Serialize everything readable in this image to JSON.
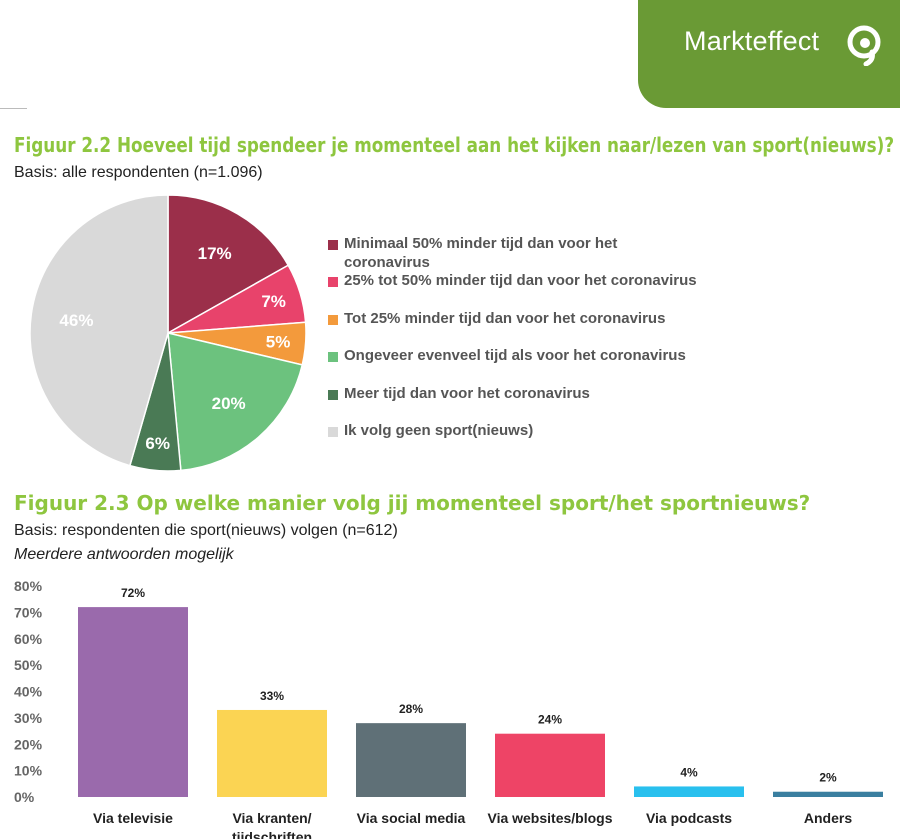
{
  "brand": {
    "name": "Markteffect",
    "color": "#6a9a35"
  },
  "figure1": {
    "title": "Figuur 2.2 Hoeveel tijd spendeer je momenteel aan het kijken naar/lezen van sport(nieuws)?",
    "basis": "Basis: alle respondenten (n=1.096)"
  },
  "figure2": {
    "title": "Figuur 2.3 Op welke manier volg jij momenteel sport/het sportnieuws?",
    "basis": "Basis: respondenten die sport(nieuws) volgen (n=612)",
    "note": "Meerdere antwoorden mogelijk"
  },
  "chart_data": [
    {
      "type": "pie",
      "start_angle": "12 o'clock, clockwise",
      "legend_position": "right",
      "slices": [
        {
          "label": "Minimaal 50% minder tijd dan voor het coronavirus",
          "value": 17,
          "display": "17%",
          "color": "#9b2f4a"
        },
        {
          "label": "25% tot 50% minder tijd dan voor het coronavirus",
          "value": 7,
          "display": "7%",
          "color": "#e8436b"
        },
        {
          "label": "Tot 25% minder tijd dan voor het coronavirus",
          "value": 5,
          "display": "5%",
          "color": "#f39a3c"
        },
        {
          "label": "Ongeveer evenveel tijd als voor het coronavirus",
          "value": 20,
          "display": "20%",
          "color": "#6cc27e"
        },
        {
          "label": "Meer tijd dan voor het coronavirus",
          "value": 6,
          "display": "6%",
          "color": "#4a7a55"
        },
        {
          "label": "Ik volg geen sport(nieuws)",
          "value": 46,
          "display": "46%",
          "color": "#d9d9d9"
        }
      ]
    },
    {
      "type": "bar",
      "categories": [
        "Via televisie",
        "Via kranten/ tijdschriften",
        "Via social media",
        "Via websites/blogs",
        "Via podcasts",
        "Anders"
      ],
      "values": [
        72,
        33,
        28,
        24,
        4,
        2
      ],
      "labels": [
        "72%",
        "33%",
        "28%",
        "24%",
        "4%",
        "2%"
      ],
      "colors": [
        "#9a6aac",
        "#fbd453",
        "#5f7077",
        "#ee4466",
        "#29c0ee",
        "#3a7fa0"
      ],
      "ylim": [
        0,
        80
      ],
      "yticks": [
        "0%",
        "10%",
        "20%",
        "30%",
        "40%",
        "50%",
        "60%",
        "70%",
        "80%"
      ],
      "grid": false
    }
  ]
}
